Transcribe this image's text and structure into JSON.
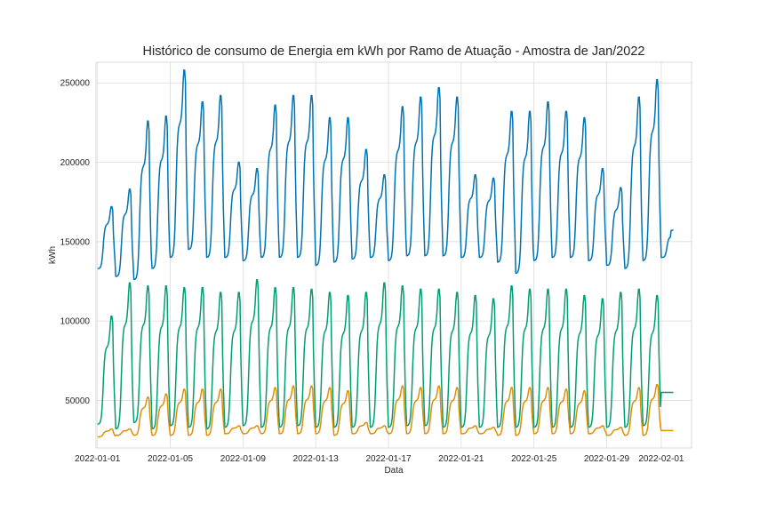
{
  "chart_data": {
    "type": "line",
    "title": "Histórico de consumo de Energia em kWh por Ramo de Atuação - Amostra de Jan/2022",
    "xlabel": "Data",
    "ylabel": "kWh",
    "xlim": [
      "2021-12-31T22:00",
      "2022-02-02T16:00"
    ],
    "ylim": [
      20000,
      263000
    ],
    "grid": true,
    "x_ticks": [
      "2022-01-01",
      "2022-01-05",
      "2022-01-09",
      "2022-01-13",
      "2022-01-17",
      "2022-01-21",
      "2022-01-25",
      "2022-01-29",
      "2022-02-01"
    ],
    "y_ticks": [
      50000,
      100000,
      150000,
      200000,
      250000
    ],
    "y_tick_labels": [
      "50000",
      "100000",
      "150000",
      "200000",
      "250000"
    ],
    "x": [
      "2022-01-01",
      "2022-01-02",
      "2022-01-03",
      "2022-01-04",
      "2022-01-05",
      "2022-01-06",
      "2022-01-07",
      "2022-01-08",
      "2022-01-09",
      "2022-01-10",
      "2022-01-11",
      "2022-01-12",
      "2022-01-13",
      "2022-01-14",
      "2022-01-15",
      "2022-01-16",
      "2022-01-17",
      "2022-01-18",
      "2022-01-19",
      "2022-01-20",
      "2022-01-21",
      "2022-01-22",
      "2022-01-23",
      "2022-01-24",
      "2022-01-25",
      "2022-01-26",
      "2022-01-27",
      "2022-01-28",
      "2022-01-29",
      "2022-01-30",
      "2022-01-31",
      "2022-02-01"
    ],
    "series": [
      {
        "color": "#0173b2",
        "daily_min": [
          133000,
          128000,
          126000,
          133000,
          140000,
          145000,
          140000,
          140000,
          138000,
          140000,
          140000,
          140000,
          135000,
          137000,
          139000,
          140000,
          138000,
          141000,
          141000,
          141000,
          140000,
          140000,
          137000,
          130000,
          138000,
          140000,
          140000,
          138000,
          135000,
          133000,
          138000,
          140000
        ],
        "daily_max": [
          172000,
          183000,
          226000,
          229000,
          258000,
          238000,
          242000,
          200000,
          196000,
          236000,
          242000,
          242000,
          228000,
          228000,
          208000,
          192000,
          235000,
          241000,
          247000,
          241000,
          192000,
          190000,
          232000,
          232000,
          238000,
          232000,
          228000,
          196000,
          184000,
          241000,
          252000,
          158000
        ]
      },
      {
        "color": "#029e73",
        "daily_min": [
          35000,
          32000,
          36000,
          32000,
          34000,
          33000,
          32000,
          33000,
          34000,
          33000,
          33000,
          34000,
          33000,
          33000,
          33000,
          33000,
          33000,
          34000,
          34000,
          33000,
          33000,
          33000,
          33000,
          33000,
          33000,
          33000,
          33000,
          33000,
          33000,
          33000,
          34000,
          55000
        ],
        "daily_max": [
          103000,
          124000,
          122000,
          122000,
          121000,
          121000,
          118000,
          118000,
          126000,
          121000,
          121000,
          120000,
          118000,
          116000,
          118000,
          124000,
          122000,
          120000,
          120000,
          118000,
          116000,
          114000,
          122000,
          120000,
          120000,
          120000,
          116000,
          114000,
          118000,
          120000,
          116000,
          55000
        ]
      },
      {
        "color": "#de8f05",
        "daily_min": [
          27000,
          28000,
          28000,
          28000,
          28000,
          28000,
          28000,
          29000,
          29000,
          29000,
          29000,
          29000,
          29000,
          28000,
          29000,
          29000,
          29000,
          29000,
          29000,
          29000,
          29000,
          29000,
          28000,
          28000,
          29000,
          29000,
          29000,
          29000,
          28000,
          28000,
          28000,
          31000
        ],
        "daily_max": [
          32000,
          32000,
          52000,
          54000,
          57000,
          57000,
          57000,
          34000,
          34000,
          58000,
          59000,
          59000,
          58000,
          56000,
          36000,
          34000,
          59000,
          58000,
          59000,
          58000,
          34000,
          33000,
          58000,
          58000,
          58000,
          57000,
          56000,
          34000,
          33000,
          58000,
          60000,
          31000
        ]
      }
    ]
  }
}
